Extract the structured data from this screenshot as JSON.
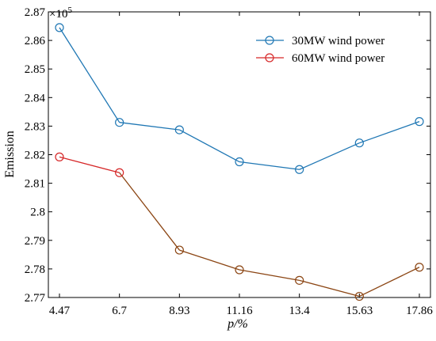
{
  "chart_data": {
    "type": "line",
    "title": "",
    "xlabel": "p/%",
    "ylabel": "Emission",
    "y_multiplier_label": "×10^5",
    "x": [
      "4.47",
      "6.7",
      "8.93",
      "11.16",
      "13.4",
      "15.63",
      "17.86"
    ],
    "ylim": [
      2.77,
      2.87
    ],
    "yticks": [
      "2.77",
      "2.78",
      "2.79",
      "2.8",
      "2.81",
      "2.82",
      "2.83",
      "2.84",
      "2.85",
      "2.86",
      "2.87"
    ],
    "grid": false,
    "legend_position": "top-right",
    "series": [
      {
        "name": "30MW wind power",
        "color": "#1f77b4",
        "marker": "circle",
        "values": [
          2.8645,
          2.8313,
          2.8287,
          2.8175,
          2.8148,
          2.8241,
          2.8316
        ]
      },
      {
        "name": "60MW wind power",
        "color": "#d62728",
        "line_color_after_first": "#8b4513",
        "marker": "circle",
        "values": [
          2.8192,
          2.8137,
          2.7866,
          2.7797,
          2.776,
          2.7704,
          2.7806
        ]
      }
    ]
  }
}
